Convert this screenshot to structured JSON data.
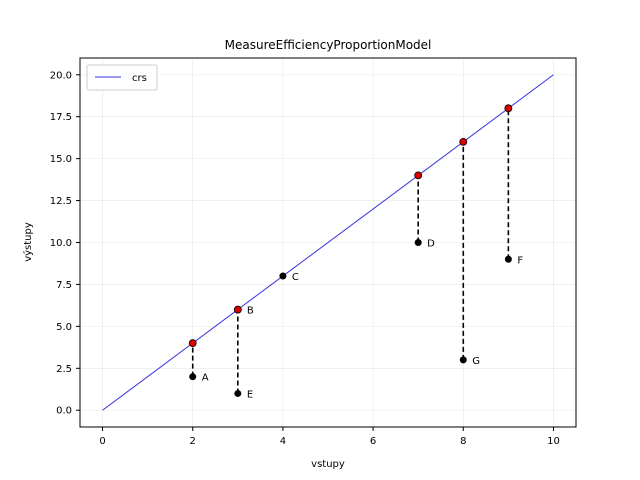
{
  "chart_data": {
    "type": "scatter",
    "title": "MeasureEfficiencyProportionModel",
    "xlabel": "vstupy",
    "ylabel": "výstupy",
    "xlim": [
      -0.5,
      10.5
    ],
    "ylim": [
      -1.0,
      21.0
    ],
    "x_ticks": [
      "0",
      "2",
      "4",
      "6",
      "8",
      "10"
    ],
    "y_ticks": [
      "0.0",
      "2.5",
      "5.0",
      "7.5",
      "10.0",
      "12.5",
      "15.0",
      "17.5",
      "20.0"
    ],
    "grid": true,
    "legend": {
      "position": "top-left",
      "entries": [
        "crs"
      ]
    },
    "crs_line": {
      "name": "crs",
      "color": "#3333dd",
      "x": [
        0,
        10
      ],
      "y": [
        0,
        20
      ]
    },
    "points": [
      {
        "label": "A",
        "x": 2,
        "y": 2,
        "target_y": 4
      },
      {
        "label": "B",
        "x": 3,
        "y": 6,
        "target_y": 6
      },
      {
        "label": "C",
        "x": 4,
        "y": 8,
        "target_y": 8
      },
      {
        "label": "D",
        "x": 7,
        "y": 10,
        "target_y": 14
      },
      {
        "label": "E",
        "x": 3,
        "y": 1,
        "target_y": 6
      },
      {
        "label": "F",
        "x": 9,
        "y": 9,
        "target_y": 18
      },
      {
        "label": "G",
        "x": 8,
        "y": 3,
        "target_y": 16
      }
    ],
    "colors": {
      "point": "#000000",
      "projection": "#dd0000",
      "dashed": "#000000"
    }
  }
}
